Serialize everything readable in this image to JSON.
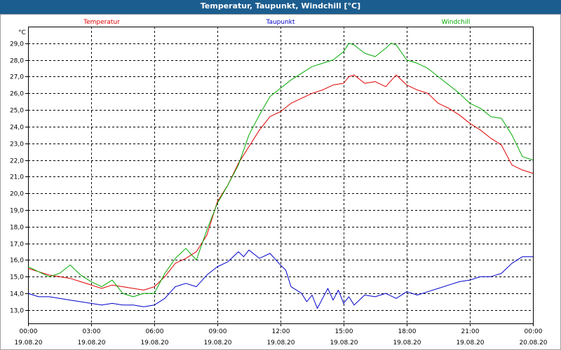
{
  "window": {
    "title": "Temperatur, Taupunkt, Windchill [°C]"
  },
  "chart_data": {
    "type": "line",
    "title": "Temperatur, Taupunkt, Windchill [°C]",
    "ylabel": "°C",
    "ylim": [
      12.2,
      30.0
    ],
    "xlim": [
      0,
      24
    ],
    "grid": true,
    "legend_position": "top",
    "y_ticks": [
      "13,0",
      "14,0",
      "15,0",
      "16,0",
      "17,0",
      "18,0",
      "19,0",
      "20,0",
      "21,0",
      "22,0",
      "23,0",
      "24,0",
      "25,0",
      "26,0",
      "27,0",
      "28,0",
      "29,0"
    ],
    "x_ticks": [
      {
        "time": "00:00",
        "date": "19.08.20"
      },
      {
        "time": "03:00",
        "date": "19.08.20"
      },
      {
        "time": "06:00",
        "date": "19.08.20"
      },
      {
        "time": "09:00",
        "date": "19.08.20"
      },
      {
        "time": "12:00",
        "date": "19.08.20"
      },
      {
        "time": "15:00",
        "date": "19.08.20"
      },
      {
        "time": "18:00",
        "date": "19.08.20"
      },
      {
        "time": "21:00",
        "date": "19.08.20"
      },
      {
        "time": "00:00",
        "date": "20.08.20"
      }
    ],
    "series": [
      {
        "name": "Temperatur",
        "color": "#e00000",
        "x": [
          0,
          0.5,
          1,
          1.5,
          2,
          2.5,
          3,
          3.5,
          4,
          4.5,
          5,
          5.5,
          6,
          6.5,
          7,
          7.5,
          8,
          8.5,
          9,
          9.5,
          10,
          10.5,
          11,
          11.5,
          12,
          12.5,
          13,
          13.5,
          14,
          14.5,
          15,
          15.25,
          15.5,
          16,
          16.5,
          17,
          17.5,
          18,
          18.5,
          19,
          19.5,
          20,
          20.5,
          21,
          21.5,
          22,
          22.5,
          23,
          23.5,
          24
        ],
        "y": [
          15.5,
          15.3,
          15.1,
          15.0,
          14.9,
          14.7,
          14.5,
          14.3,
          14.5,
          14.4,
          14.3,
          14.2,
          14.4,
          15.0,
          15.8,
          16.1,
          16.5,
          17.5,
          19.5,
          20.5,
          21.8,
          22.8,
          23.8,
          24.6,
          24.9,
          25.4,
          25.7,
          26.0,
          26.2,
          26.5,
          26.6,
          27.0,
          27.1,
          26.6,
          26.7,
          26.4,
          27.1,
          26.5,
          26.2,
          26.0,
          25.4,
          25.1,
          24.7,
          24.2,
          23.8,
          23.3,
          22.9,
          21.7,
          21.4,
          21.2
        ]
      },
      {
        "name": "Taupunkt",
        "color": "#0000cc",
        "x": [
          0,
          0.5,
          1,
          1.5,
          2,
          2.5,
          3,
          3.5,
          4,
          4.5,
          5,
          5.5,
          6,
          6.5,
          7,
          7.5,
          8,
          8.5,
          9,
          9.5,
          10,
          10.25,
          10.5,
          11,
          11.5,
          12,
          12.25,
          12.5,
          13,
          13.25,
          13.5,
          13.75,
          14,
          14.25,
          14.5,
          14.75,
          15,
          15.25,
          15.5,
          16,
          16.5,
          17,
          17.5,
          18,
          18.5,
          19,
          19.5,
          20,
          20.5,
          21,
          21.5,
          22,
          22.5,
          23,
          23.5,
          24
        ],
        "y": [
          14.0,
          13.8,
          13.8,
          13.7,
          13.6,
          13.5,
          13.4,
          13.3,
          13.4,
          13.3,
          13.3,
          13.2,
          13.3,
          13.7,
          14.4,
          14.6,
          14.4,
          15.1,
          15.6,
          15.9,
          16.5,
          16.2,
          16.6,
          16.1,
          16.4,
          15.7,
          15.4,
          14.4,
          14.0,
          13.5,
          13.9,
          13.1,
          13.7,
          14.3,
          13.6,
          14.2,
          13.4,
          13.8,
          13.3,
          13.9,
          13.8,
          14.0,
          13.7,
          14.1,
          13.9,
          14.1,
          14.3,
          14.5,
          14.7,
          14.8,
          15.0,
          15.0,
          15.2,
          15.8,
          16.2,
          16.2
        ]
      },
      {
        "name": "Windchill",
        "color": "#00aa00",
        "x": [
          0,
          0.5,
          1,
          1.5,
          2,
          2.5,
          3,
          3.5,
          4,
          4.5,
          5,
          5.5,
          6,
          6.5,
          7,
          7.5,
          8,
          8.5,
          9,
          9.5,
          10,
          10.5,
          11,
          11.5,
          12,
          12.5,
          13,
          13.5,
          14,
          14.5,
          15,
          15.25,
          15.5,
          16,
          16.5,
          17,
          17.25,
          17.5,
          18,
          18.5,
          19,
          19.5,
          20,
          20.5,
          21,
          21.5,
          22,
          22.5,
          23,
          23.5,
          24
        ],
        "y": [
          15.6,
          15.3,
          15.0,
          15.2,
          15.7,
          15.1,
          14.7,
          14.4,
          14.8,
          14.0,
          13.8,
          14.0,
          14.0,
          15.2,
          16.1,
          16.7,
          16.0,
          17.8,
          19.4,
          20.5,
          21.7,
          23.5,
          24.7,
          25.8,
          26.3,
          26.8,
          27.2,
          27.6,
          27.8,
          28.0,
          28.5,
          29.0,
          28.9,
          28.4,
          28.2,
          28.7,
          29.0,
          28.9,
          28.0,
          27.8,
          27.5,
          27.0,
          26.5,
          26.0,
          25.4,
          25.1,
          24.6,
          24.5,
          23.5,
          22.2,
          22.0
        ]
      }
    ]
  }
}
